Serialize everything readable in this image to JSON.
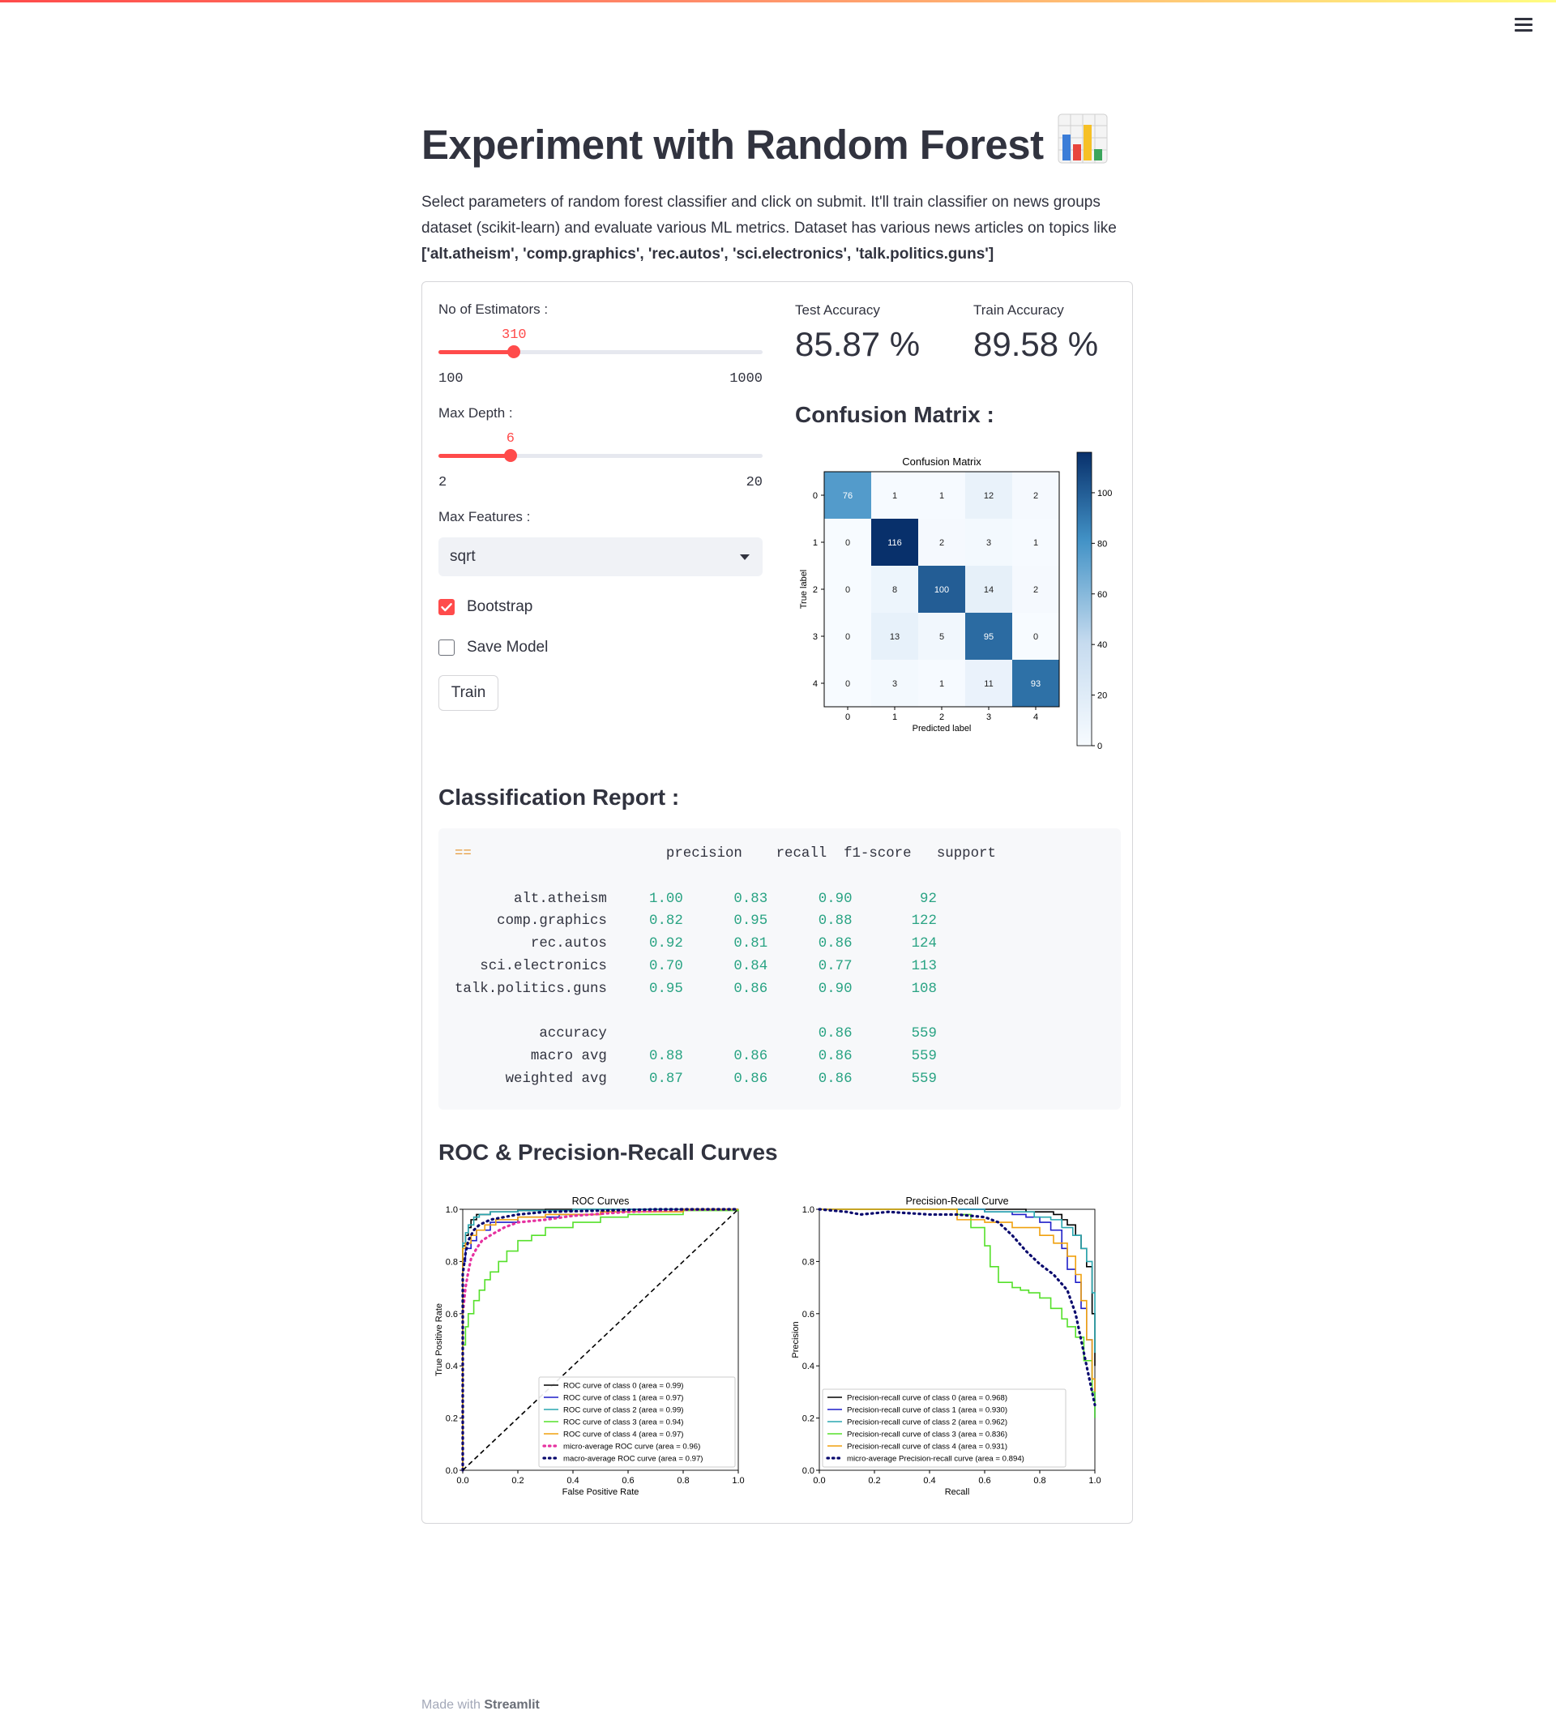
{
  "app": {
    "menu_icon": "hamburger-menu-icon"
  },
  "page": {
    "title": "Experiment with Random Forest",
    "title_icon": "bar-chart-emoji-icon",
    "intro": "Select parameters of random forest classifier and click on submit. It'll train classifier on news groups dataset (scikit-learn) and evaluate various ML metrics. Dataset has various news articles on topics like",
    "topics": "['alt.atheism', 'comp.graphics', 'rec.autos', 'sci.electronics', 'talk.politics.guns']"
  },
  "form": {
    "estimators": {
      "label": "No of Estimators :",
      "value": "310",
      "min": "100",
      "max": "1000",
      "level": 0.2333
    },
    "depth": {
      "label": "Max Depth :",
      "value": "6",
      "min": "2",
      "max": "20",
      "level": 0.2222
    },
    "features": {
      "label": "Max Features :",
      "value": "sqrt"
    },
    "bootstrap": {
      "label": "Bootstrap",
      "checked": true
    },
    "save_model": {
      "label": "Save Model",
      "checked": false
    },
    "train_label": "Train",
    "accent": "#ff4b4b"
  },
  "metrics": {
    "test_label": "Test Accuracy",
    "test_value": "85.87 %",
    "train_label": "Train Accuracy",
    "train_value": "89.58 %"
  },
  "confusion": {
    "heading": "Confusion Matrix :",
    "chart_title": "Confusion Matrix",
    "xlabel": "Predicted label",
    "ylabel": "True label",
    "labels": [
      "0",
      "1",
      "2",
      "3",
      "4"
    ],
    "matrix": [
      [
        76,
        1,
        1,
        12,
        2
      ],
      [
        0,
        116,
        2,
        3,
        1
      ],
      [
        0,
        8,
        100,
        14,
        2
      ],
      [
        0,
        13,
        5,
        95,
        0
      ],
      [
        0,
        3,
        1,
        11,
        93
      ]
    ],
    "colorbar_ticks": [
      "0",
      "20",
      "40",
      "60",
      "80",
      "100"
    ]
  },
  "report": {
    "heading": "Classification Report :",
    "marker": "==",
    "headers": [
      "precision",
      "recall",
      "f1-score",
      "support"
    ],
    "rows": [
      [
        "alt.atheism",
        "1.00",
        "0.83",
        "0.90",
        "92"
      ],
      [
        "comp.graphics",
        "0.82",
        "0.95",
        "0.88",
        "122"
      ],
      [
        "rec.autos",
        "0.92",
        "0.81",
        "0.86",
        "124"
      ],
      [
        "sci.electronics",
        "0.70",
        "0.84",
        "0.77",
        "113"
      ],
      [
        "talk.politics.guns",
        "0.95",
        "0.86",
        "0.90",
        "108"
      ]
    ],
    "summary": [
      [
        "accuracy",
        "",
        "",
        "0.86",
        "559"
      ],
      [
        "macro avg",
        "0.88",
        "0.86",
        "0.86",
        "559"
      ],
      [
        "weighted avg",
        "0.87",
        "0.86",
        "0.86",
        "559"
      ]
    ]
  },
  "curves_heading": "ROC & Precision-Recall Curves",
  "chart_data": [
    {
      "type": "heatmap",
      "title": "Confusion Matrix",
      "xlabel": "Predicted label",
      "ylabel": "True label",
      "x": [
        "0",
        "1",
        "2",
        "3",
        "4"
      ],
      "y": [
        "0",
        "1",
        "2",
        "3",
        "4"
      ],
      "values": [
        [
          76,
          1,
          1,
          12,
          2
        ],
        [
          0,
          116,
          2,
          3,
          1
        ],
        [
          0,
          8,
          100,
          14,
          2
        ],
        [
          0,
          13,
          5,
          95,
          0
        ],
        [
          0,
          3,
          1,
          11,
          93
        ]
      ],
      "colorbar_range": [
        0,
        116
      ]
    },
    {
      "type": "line",
      "title": "ROC Curves",
      "xlabel": "False Positive Rate",
      "ylabel": "True Positive Rate",
      "xlim": [
        0,
        1
      ],
      "ylim": [
        0,
        1
      ],
      "xticks": [
        "0.0",
        "0.2",
        "0.4",
        "0.6",
        "0.8",
        "1.0"
      ],
      "yticks": [
        "0.0",
        "0.2",
        "0.4",
        "0.6",
        "0.8",
        "1.0"
      ],
      "legend": "bottom-right",
      "series": [
        {
          "name": "ROC curve of class 0 (area = 0.99)",
          "color": "#000000",
          "x": [
            0,
            0,
            0.01,
            0.02,
            0.03,
            0.05,
            0.1,
            0.2,
            0.3,
            1
          ],
          "y": [
            0,
            0.86,
            0.9,
            0.93,
            0.96,
            0.98,
            0.99,
            0.995,
            1,
            1
          ]
        },
        {
          "name": "ROC curve of class 1 (area = 0.97)",
          "color": "#1f1fc8",
          "x": [
            0,
            0,
            0.01,
            0.03,
            0.05,
            0.1,
            0.2,
            0.35,
            0.5,
            0.8,
            1
          ],
          "y": [
            0,
            0.8,
            0.85,
            0.88,
            0.92,
            0.95,
            0.97,
            0.98,
            0.99,
            1,
            1
          ]
        },
        {
          "name": "ROC curve of class 2 (area = 0.99)",
          "color": "#2aa7b0",
          "x": [
            0,
            0,
            0.01,
            0.02,
            0.04,
            0.06,
            0.1,
            0.2,
            0.4,
            1
          ],
          "y": [
            0,
            0.87,
            0.91,
            0.94,
            0.97,
            0.98,
            0.99,
            0.995,
            1,
            1
          ]
        },
        {
          "name": "ROC curve of class 3 (area = 0.94)",
          "color": "#55e02a",
          "x": [
            0,
            0,
            0.01,
            0.02,
            0.04,
            0.06,
            0.08,
            0.1,
            0.13,
            0.16,
            0.2,
            0.25,
            0.3,
            0.4,
            0.5,
            0.6,
            0.8,
            1
          ],
          "y": [
            0,
            0.48,
            0.55,
            0.6,
            0.65,
            0.69,
            0.73,
            0.76,
            0.8,
            0.84,
            0.88,
            0.9,
            0.93,
            0.95,
            0.97,
            0.98,
            0.995,
            1
          ]
        },
        {
          "name": "ROC curve of class 4 (area = 0.97)",
          "color": "#f0a10f",
          "x": [
            0,
            0,
            0.01,
            0.03,
            0.05,
            0.08,
            0.12,
            0.2,
            0.3,
            0.5,
            0.8,
            1
          ],
          "y": [
            0,
            0.85,
            0.87,
            0.9,
            0.92,
            0.94,
            0.96,
            0.97,
            0.98,
            0.99,
            1,
            1
          ]
        },
        {
          "name": "micro-average ROC curve (area = 0.96)",
          "color": "#e632a0",
          "dash": "dot",
          "x": [
            0,
            0,
            0.01,
            0.02,
            0.03,
            0.05,
            0.07,
            0.1,
            0.15,
            0.2,
            0.3,
            0.4,
            0.6,
            0.8,
            1
          ],
          "y": [
            0,
            0.6,
            0.7,
            0.76,
            0.81,
            0.85,
            0.88,
            0.9,
            0.93,
            0.95,
            0.96,
            0.975,
            0.99,
            0.998,
            1
          ]
        },
        {
          "name": "macro-average ROC curve (area = 0.97)",
          "color": "#0a0a6e",
          "dash": "dot",
          "x": [
            0,
            0,
            0.01,
            0.02,
            0.04,
            0.06,
            0.1,
            0.15,
            0.2,
            0.3,
            0.5,
            0.7,
            1
          ],
          "y": [
            0,
            0.75,
            0.83,
            0.88,
            0.92,
            0.94,
            0.96,
            0.97,
            0.98,
            0.99,
            0.995,
            1,
            1
          ]
        },
        {
          "name": "",
          "color": "#000000",
          "dash": "dash",
          "x": [
            0,
            1
          ],
          "y": [
            0,
            1
          ]
        }
      ]
    },
    {
      "type": "line",
      "title": "Precision-Recall Curve",
      "xlabel": "Recall",
      "ylabel": "Precision",
      "xlim": [
        0,
        1
      ],
      "ylim": [
        0,
        1
      ],
      "xticks": [
        "0.0",
        "0.2",
        "0.4",
        "0.6",
        "0.8",
        "1.0"
      ],
      "yticks": [
        "0.0",
        "0.2",
        "0.4",
        "0.6",
        "0.8",
        "1.0"
      ],
      "legend": "bottom-left",
      "series": [
        {
          "name": "Precision-recall curve of class 0 (area = 0.968)",
          "color": "#000000",
          "x": [
            0,
            0.3,
            0.5,
            0.7,
            0.75,
            0.8,
            0.85,
            0.88,
            0.9,
            0.93,
            0.95,
            0.97,
            0.99,
            1
          ],
          "y": [
            1,
            1,
            1,
            1,
            0.99,
            0.99,
            0.98,
            0.96,
            0.94,
            0.9,
            0.85,
            0.78,
            0.6,
            0.4
          ]
        },
        {
          "name": "Precision-recall curve of class 1 (area = 0.930)",
          "color": "#1f1fc8",
          "x": [
            0,
            0.4,
            0.6,
            0.7,
            0.75,
            0.8,
            0.84,
            0.88,
            0.9,
            0.93,
            0.95,
            0.97,
            0.99,
            1
          ],
          "y": [
            1,
            1,
            0.99,
            0.98,
            0.97,
            0.95,
            0.92,
            0.85,
            0.77,
            0.72,
            0.62,
            0.5,
            0.35,
            0.2
          ]
        },
        {
          "name": "Precision-recall curve of class 2 (area = 0.962)",
          "color": "#2aa7b0",
          "x": [
            0,
            0.4,
            0.6,
            0.7,
            0.78,
            0.84,
            0.88,
            0.92,
            0.95,
            0.97,
            0.99,
            1
          ],
          "y": [
            1,
            1,
            0.99,
            0.99,
            0.97,
            0.96,
            0.93,
            0.9,
            0.85,
            0.8,
            0.68,
            0.45
          ]
        },
        {
          "name": "Precision-recall curve of class 3 (area = 0.836)",
          "color": "#55e02a",
          "x": [
            0,
            0.4,
            0.5,
            0.55,
            0.6,
            0.62,
            0.65,
            0.7,
            0.73,
            0.76,
            0.8,
            0.84,
            0.88,
            0.9,
            0.93,
            0.96,
            0.99,
            1
          ],
          "y": [
            1,
            1,
            0.98,
            0.93,
            0.86,
            0.78,
            0.72,
            0.7,
            0.69,
            0.68,
            0.66,
            0.62,
            0.58,
            0.55,
            0.51,
            0.42,
            0.3,
            0.2
          ]
        },
        {
          "name": "Precision-recall curve of class 4 (area = 0.931)",
          "color": "#f0a10f",
          "x": [
            0,
            0.4,
            0.5,
            0.6,
            0.7,
            0.8,
            0.85,
            0.9,
            0.93,
            0.95,
            0.97,
            0.99,
            1
          ],
          "y": [
            1,
            1,
            0.96,
            0.95,
            0.93,
            0.9,
            0.87,
            0.82,
            0.75,
            0.65,
            0.5,
            0.35,
            0.3
          ]
        },
        {
          "name": "micro-average Precision-recall curve (area = 0.894)",
          "color": "#0a0a6e",
          "dash": "dot",
          "x": [
            0,
            0.1,
            0.15,
            0.25,
            0.4,
            0.5,
            0.6,
            0.65,
            0.7,
            0.75,
            0.8,
            0.85,
            0.9,
            0.93,
            0.95,
            0.97,
            0.99,
            1
          ],
          "y": [
            1,
            0.99,
            0.98,
            0.99,
            0.98,
            0.98,
            0.97,
            0.95,
            0.9,
            0.84,
            0.79,
            0.75,
            0.69,
            0.6,
            0.5,
            0.4,
            0.3,
            0.25
          ]
        }
      ]
    }
  ],
  "footer": {
    "prefix": "Made with",
    "brand": "Streamlit"
  }
}
